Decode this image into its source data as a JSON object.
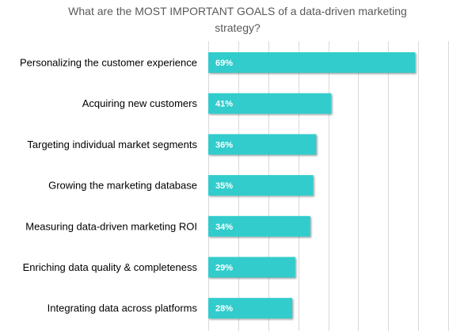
{
  "chart_data": {
    "type": "bar",
    "orientation": "horizontal",
    "title": "What are the MOST IMPORTANT GOALS of a data-driven marketing strategy?",
    "categories": [
      "Personalizing the customer experience",
      "Acquiring new customers",
      "Targeting individual market segments",
      "Growing the marketing database",
      "Measuring data-driven marketing ROI",
      "Enriching data quality & completeness",
      "Integrating data across platforms"
    ],
    "values": [
      69,
      41,
      36,
      35,
      34,
      29,
      28
    ],
    "data_labels": [
      "69%",
      "41%",
      "36%",
      "35%",
      "34%",
      "29%",
      "28%"
    ],
    "xlim": [
      0,
      80
    ],
    "grid": "vertical",
    "bar_color": "#33CCCC",
    "label_color": "#FFFFFF",
    "text_color": "#000000",
    "grid_color": "#D9D9D9"
  }
}
